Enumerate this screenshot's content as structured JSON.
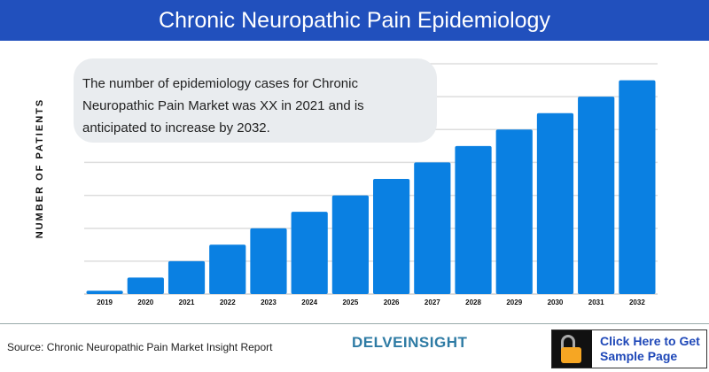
{
  "chart_data": {
    "type": "bar",
    "title": "Chronic Neuropathic Pain Epidemiology",
    "ylabel": "NUMBER OF PATIENTS",
    "xlabel": "",
    "categories": [
      "2019",
      "2020",
      "2021",
      "2022",
      "2023",
      "2024",
      "2025",
      "2026",
      "2027",
      "2028",
      "2029",
      "2030",
      "2031",
      "2032"
    ],
    "values": [
      0.1,
      0.5,
      1,
      1.5,
      2,
      2.5,
      3,
      3.5,
      4,
      4.5,
      5,
      5.5,
      6,
      6.5
    ],
    "ylim": [
      0,
      7
    ],
    "grid": true,
    "bar_color": "#0a80e2",
    "annotation": "The number of epidemiology cases for Chronic Neuropathic Pain Market was XX in 2021 and is anticipated to increase by 2032."
  },
  "footer": {
    "source": "Source: Chronic Neuropathic Pain Market Insight Report",
    "logo": "DELVEINSIGHT",
    "cta": "Click Here to Get Sample Page",
    "cta_icon": "unlock-icon"
  },
  "colors": {
    "header": "#2150bd",
    "cta_text": "#1f48b8",
    "lock": "#f6a623"
  }
}
